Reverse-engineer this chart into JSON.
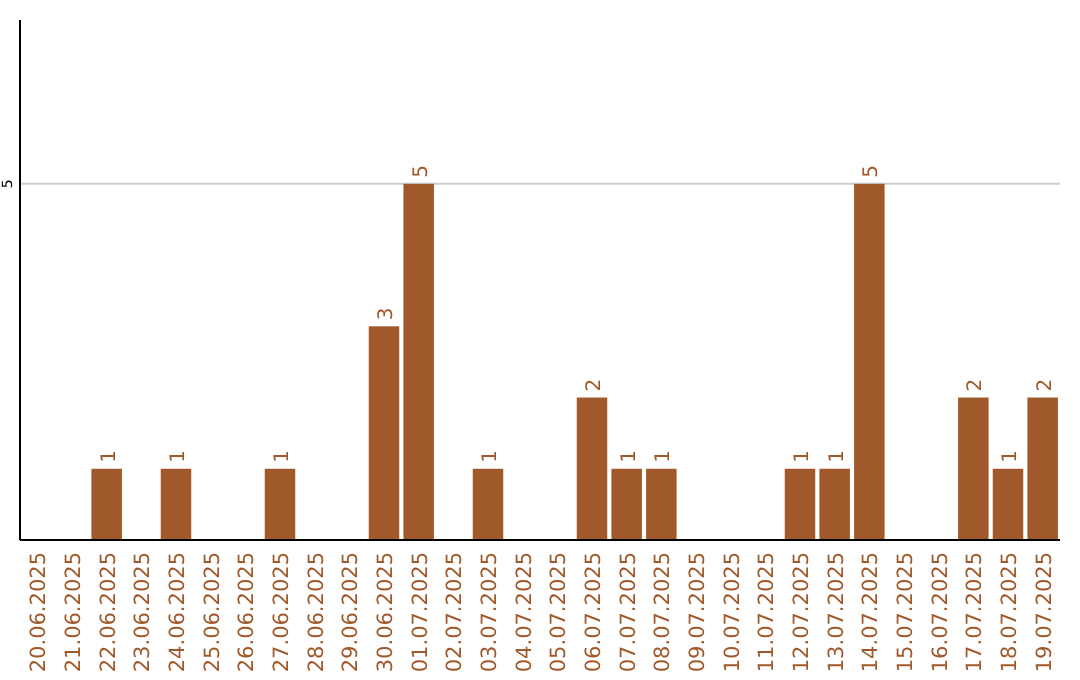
{
  "chart_data": {
    "type": "bar",
    "categories": [
      "20.06.2025",
      "21.06.2025",
      "22.06.2025",
      "23.06.2025",
      "24.06.2025",
      "25.06.2025",
      "26.06.2025",
      "27.06.2025",
      "28.06.2025",
      "29.06.2025",
      "30.06.2025",
      "01.07.2025",
      "02.07.2025",
      "03.07.2025",
      "04.07.2025",
      "05.07.2025",
      "06.07.2025",
      "07.07.2025",
      "08.07.2025",
      "09.07.2025",
      "10.07.2025",
      "11.07.2025",
      "12.07.2025",
      "13.07.2025",
      "14.07.2025",
      "15.07.2025",
      "16.07.2025",
      "17.07.2025",
      "18.07.2025",
      "19.07.2025"
    ],
    "values": [
      0,
      0,
      1,
      0,
      1,
      0,
      0,
      1,
      0,
      0,
      3,
      5,
      0,
      1,
      0,
      0,
      2,
      1,
      1,
      0,
      0,
      0,
      1,
      1,
      5,
      0,
      0,
      2,
      1,
      2
    ],
    "value_labels": [
      null,
      null,
      "1",
      null,
      "1",
      null,
      null,
      "1",
      null,
      null,
      "3",
      "5",
      null,
      "1",
      null,
      null,
      "2",
      "1",
      "1",
      null,
      null,
      null,
      "1",
      "1",
      "5",
      null,
      null,
      "2",
      "1",
      "2"
    ],
    "color": "#a0592b",
    "ylim": [
      0,
      7.3
    ],
    "yticks": [
      5
    ],
    "grid": "y"
  }
}
